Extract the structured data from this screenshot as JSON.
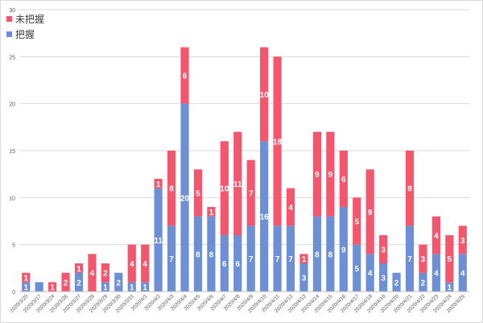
{
  "chart_data": {
    "type": "bar",
    "stacked": true,
    "title": "",
    "xlabel": "",
    "ylabel": "",
    "ylim": [
      0,
      30
    ],
    "yticks": [
      0,
      5,
      10,
      15,
      20,
      25,
      30
    ],
    "grid": true,
    "legend": "top-left",
    "categories": [
      "2020/3/20",
      "2020/3/17",
      "2020/3/24",
      "2020/3/26",
      "2020/3/27",
      "2020/3/28",
      "2020/3/29",
      "2020/3/30",
      "2020/3/31",
      "2020/4/1",
      "2020/4/2",
      "2020/4/3",
      "2020/4/4",
      "2020/4/5",
      "2020/4/6",
      "2020/4/7",
      "2020/4/8",
      "2020/4/9",
      "2020/4/10",
      "2020/4/11",
      "2020/4/12",
      "2020/4/13",
      "2020/4/14",
      "2020/4/15",
      "2020/4/16",
      "2020/4/17",
      "2020/4/18",
      "2020/4/19",
      "2020/4/20",
      "2020/4/21",
      "2020/4/22",
      "2020/4/23",
      "2020/4/24",
      "2020/4/25"
    ],
    "series": [
      {
        "name": "把握",
        "color": "#6c8fd5",
        "values": [
          1,
          1,
          0,
          0,
          2,
          0,
          1,
          2,
          1,
          1,
          11,
          7,
          20,
          8,
          8,
          6,
          6,
          7,
          16,
          7,
          7,
          3,
          8,
          8,
          9,
          5,
          4,
          3,
          2,
          7,
          2,
          4,
          1,
          4
        ],
        "labels": [
          "1",
          "",
          "",
          "",
          "2",
          "",
          "1",
          "2",
          "1",
          "1",
          "11",
          "7",
          "20",
          "8",
          "8",
          "6",
          "6",
          "7",
          "16",
          "7",
          "7",
          "3",
          "8",
          "8",
          "9",
          "5",
          "4",
          "3",
          "2",
          "7",
          "2",
          "4",
          "1",
          "4"
        ]
      },
      {
        "name": "未把握",
        "color": "#f4566e",
        "values": [
          1,
          0,
          1,
          2,
          1,
          4,
          2,
          0,
          4,
          4,
          1,
          8,
          6,
          5,
          1,
          10,
          11,
          7,
          10,
          18,
          4,
          1,
          9,
          9,
          6,
          5,
          9,
          3,
          0,
          8,
          3,
          4,
          5,
          3
        ],
        "labels": [
          "1",
          "",
          "1",
          "2",
          "1",
          "4",
          "2",
          "",
          "4",
          "4",
          "1",
          "8",
          "6",
          "5",
          "1",
          "10",
          "11",
          "7",
          "10",
          "18",
          "4",
          "1",
          "9",
          "9",
          "6",
          "5",
          "9",
          "3",
          "",
          "8",
          "3",
          "4",
          "5",
          "3"
        ]
      }
    ]
  }
}
